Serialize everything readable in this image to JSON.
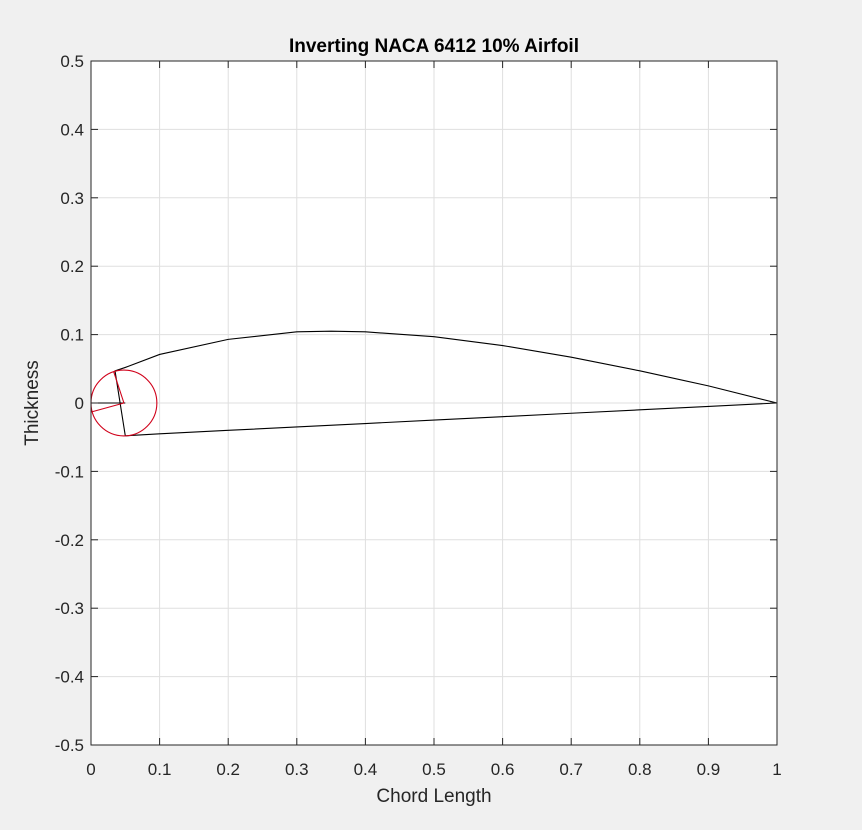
{
  "chart_data": {
    "type": "line",
    "title": "Inverting NACA 6412 10% Airfoil",
    "xlabel": "Chord Length",
    "ylabel": "Thickness",
    "xlim": [
      0,
      1
    ],
    "ylim": [
      -0.5,
      0.5
    ],
    "grid": true,
    "xticks": [
      0,
      0.1,
      0.2,
      0.3,
      0.4,
      0.5,
      0.6,
      0.7,
      0.8,
      0.9,
      1
    ],
    "xtick_labels": [
      "0",
      "0.1",
      "0.2",
      "0.3",
      "0.4",
      "0.5",
      "0.6",
      "0.7",
      "0.8",
      "0.9",
      "1"
    ],
    "yticks": [
      -0.5,
      -0.4,
      -0.3,
      -0.2,
      -0.1,
      0,
      0.1,
      0.2,
      0.3,
      0.4,
      0.5
    ],
    "ytick_labels": [
      "-0.5",
      "-0.4",
      "-0.3",
      "-0.2",
      "-0.1",
      "0",
      "0.1",
      "0.2",
      "0.3",
      "0.4",
      "0.5"
    ],
    "series": [
      {
        "color": "#000000",
        "x": [
          0.05,
          0.035,
          0.05,
          0.1,
          0.2,
          0.3,
          0.35,
          0.4,
          0.5,
          0.6,
          0.7,
          0.8,
          0.9,
          1.0
        ],
        "y": [
          -0.048,
          0.047,
          0.052,
          0.071,
          0.093,
          0.104,
          0.105,
          0.104,
          0.097,
          0.084,
          0.067,
          0.047,
          0.025,
          0.0
        ]
      },
      {
        "color": "#000000",
        "x": [
          0.05,
          0.1,
          0.2,
          0.3,
          0.4,
          0.5,
          0.6,
          0.7,
          0.8,
          0.9,
          1.0
        ],
        "y": [
          -0.048,
          -0.045,
          -0.04,
          -0.035,
          -0.03,
          -0.025,
          -0.02,
          -0.015,
          -0.01,
          -0.005,
          0.0
        ]
      },
      {
        "color": "#000000",
        "x": [
          0.05,
          0.035,
          0.02,
          0.008,
          0.001,
          0.0,
          0.005,
          0.02,
          0.035,
          0.05
        ],
        "y": [
          0.0,
          -0.0,
          0.0,
          0.0,
          0.0,
          0.0,
          0.0,
          0.0,
          0.0,
          0.0
        ]
      }
    ],
    "circle": {
      "color": "#d0021b",
      "center": [
        0.048,
        0.0
      ],
      "radius": 0.048,
      "radius_segments": [
        {
          "from": [
            0.048,
            0.0
          ],
          "to": [
            0.033,
            0.046
          ]
        },
        {
          "from": [
            0.048,
            0.0
          ],
          "to": [
            0.001,
            -0.013
          ]
        }
      ]
    }
  }
}
